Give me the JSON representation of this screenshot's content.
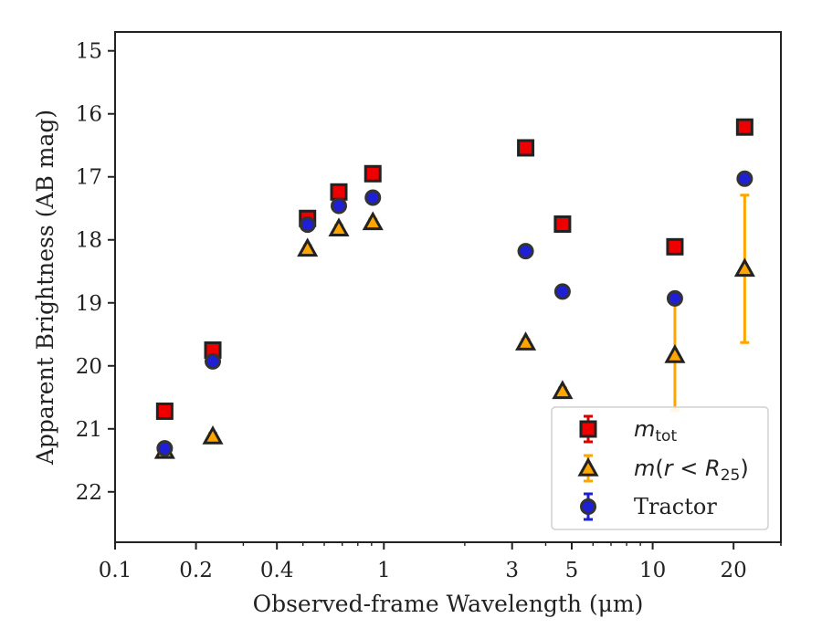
{
  "chart_data": {
    "type": "scatter",
    "xlabel": "Observed-frame Wavelength (μm)",
    "ylabel": "Apparent Brightness (AB mag)",
    "x_scale": "log",
    "y_inverted": true,
    "xlim": [
      0.1,
      30
    ],
    "ylim": [
      22.8,
      14.7
    ],
    "x_ticks": [
      0.1,
      0.2,
      0.4,
      1,
      3,
      5,
      10,
      20
    ],
    "x_tick_labels": [
      "0.1",
      "0.2",
      "0.4",
      "1",
      "3",
      "5",
      "10",
      "20"
    ],
    "y_ticks": [
      15,
      16,
      17,
      18,
      19,
      20,
      21,
      22
    ],
    "y_tick_labels": [
      "15",
      "16",
      "17",
      "18",
      "19",
      "20",
      "21",
      "22"
    ],
    "grid": false,
    "legend_position": "lower-right",
    "series": [
      {
        "name": "m_tot",
        "marker": "square",
        "color": "#ee0000",
        "error_color": "#dd0000",
        "edge_color": "#222222",
        "points": [
          {
            "x": 0.153,
            "y": 20.72,
            "err": 0.05
          },
          {
            "x": 0.231,
            "y": 19.75,
            "err": 0.05
          },
          {
            "x": 0.52,
            "y": 17.66,
            "err": 0.05
          },
          {
            "x": 0.68,
            "y": 17.24,
            "err": 0.05
          },
          {
            "x": 0.91,
            "y": 16.95,
            "err": 0.05
          },
          {
            "x": 3.37,
            "y": 16.54,
            "err": 0.05
          },
          {
            "x": 4.62,
            "y": 17.75,
            "err": 0.05
          },
          {
            "x": 12.1,
            "y": 18.11,
            "err": 0.05
          },
          {
            "x": 22.0,
            "y": 16.21,
            "err": 0.05
          }
        ]
      },
      {
        "name": "m(r<R25)",
        "marker": "triangle",
        "color": "#ffa500",
        "error_color": "#ffa500",
        "edge_color": "#222222",
        "points": [
          {
            "x": 0.153,
            "y": 21.35,
            "err": 0.05
          },
          {
            "x": 0.231,
            "y": 21.12,
            "err": 0.05
          },
          {
            "x": 0.52,
            "y": 18.14,
            "err": 0.05
          },
          {
            "x": 0.68,
            "y": 17.82,
            "err": 0.05
          },
          {
            "x": 0.91,
            "y": 17.72,
            "err": 0.05
          },
          {
            "x": 3.37,
            "y": 19.63,
            "err": 0.05
          },
          {
            "x": 4.62,
            "y": 20.4,
            "err": 0.05
          },
          {
            "x": 12.1,
            "y": 19.83,
            "err": 0.88
          },
          {
            "x": 22.0,
            "y": 18.46,
            "err": 1.17
          }
        ]
      },
      {
        "name": "Tractor",
        "marker": "circle",
        "color": "#1f1fd6",
        "error_color": "#1f1fd6",
        "edge_color": "#333333",
        "points": [
          {
            "x": 0.153,
            "y": 21.31,
            "err": 0.05
          },
          {
            "x": 0.231,
            "y": 19.93,
            "err": 0.05
          },
          {
            "x": 0.52,
            "y": 17.76,
            "err": 0.05
          },
          {
            "x": 0.68,
            "y": 17.46,
            "err": 0.05
          },
          {
            "x": 0.91,
            "y": 17.33,
            "err": 0.05
          },
          {
            "x": 3.37,
            "y": 18.18,
            "err": 0.05
          },
          {
            "x": 4.62,
            "y": 18.82,
            "err": 0.05
          },
          {
            "x": 12.1,
            "y": 18.93,
            "err": 0.05
          },
          {
            "x": 22.0,
            "y": 17.03,
            "err": 0.05
          }
        ]
      }
    ]
  }
}
